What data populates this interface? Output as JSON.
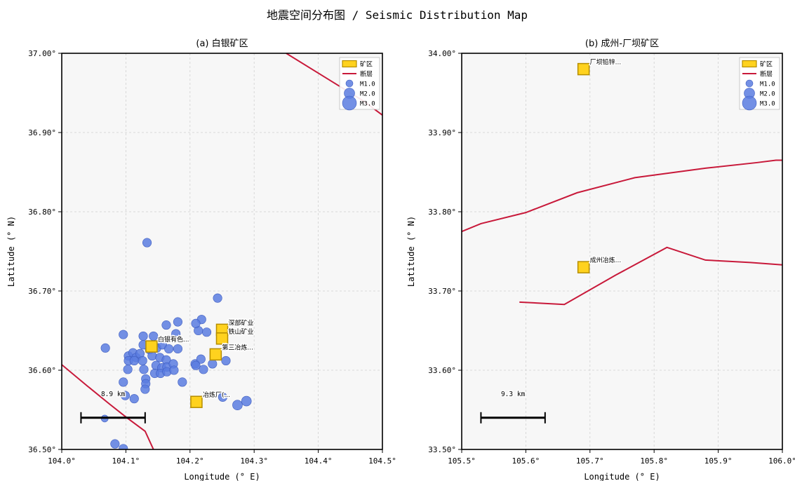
{
  "figure_title": "地震空间分布图 / Seismic Distribution Map",
  "colors": {
    "panel_bg": "#f7f7f7",
    "quake_fill": "#5b7de0",
    "quake_edge": "#3f5dbf",
    "mine_fill": "#ffd21e",
    "mine_edge": "#b58d00",
    "fault": "#c8193a",
    "scale_bar": "#000000",
    "grid": "#d0d0d0"
  },
  "chart_data": [
    {
      "type": "scatter",
      "title": "(a) 白银矿区",
      "xlabel": "Longitude (° E)",
      "ylabel": "Latitude (° N)",
      "xlim": [
        104.0,
        104.5
      ],
      "ylim": [
        36.5,
        37.0
      ],
      "xticks": [
        104.0,
        104.1,
        104.2,
        104.3,
        104.4,
        104.5
      ],
      "xtick_labels": [
        "104.0°",
        "104.1°",
        "104.2°",
        "104.3°",
        "104.4°",
        "104.5°"
      ],
      "yticks": [
        36.5,
        36.6,
        36.7,
        36.8,
        36.9,
        37.0
      ],
      "ytick_labels": [
        "36.50°",
        "36.60°",
        "36.70°",
        "36.80°",
        "36.90°",
        "37.00°"
      ],
      "grid": true,
      "legend_position": "top-right",
      "legend": [
        {
          "label": "矿区",
          "kind": "mine"
        },
        {
          "label": "断层",
          "kind": "fault"
        },
        {
          "label": "M1.0",
          "kind": "quake",
          "mag": 1.0
        },
        {
          "label": "M2.0",
          "kind": "quake",
          "mag": 2.0
        },
        {
          "label": "M3.0",
          "kind": "quake",
          "mag": 3.0
        }
      ],
      "earthquakes": [
        [
          104.133,
          36.761,
          1.5
        ],
        [
          104.243,
          36.691,
          1.5
        ],
        [
          104.218,
          36.664,
          1.5
        ],
        [
          104.226,
          36.648,
          1.5
        ],
        [
          104.213,
          36.65,
          1.5
        ],
        [
          104.209,
          36.659,
          1.5
        ],
        [
          104.163,
          36.657,
          1.5
        ],
        [
          104.181,
          36.661,
          1.5
        ],
        [
          104.178,
          36.646,
          1.5
        ],
        [
          104.096,
          36.645,
          1.5
        ],
        [
          104.127,
          36.643,
          1.5
        ],
        [
          104.143,
          36.643,
          1.5
        ],
        [
          104.068,
          36.628,
          1.5
        ],
        [
          104.104,
          36.618,
          1.5
        ],
        [
          104.111,
          36.622,
          1.5
        ],
        [
          104.116,
          36.616,
          1.5
        ],
        [
          104.122,
          36.621,
          1.5
        ],
        [
          104.127,
          36.632,
          1.5
        ],
        [
          104.137,
          36.626,
          1.5
        ],
        [
          104.148,
          36.628,
          1.5
        ],
        [
          104.157,
          36.632,
          1.5
        ],
        [
          104.167,
          36.627,
          1.5
        ],
        [
          104.181,
          36.627,
          1.5
        ],
        [
          104.141,
          36.618,
          1.5
        ],
        [
          104.153,
          36.616,
          1.5
        ],
        [
          104.163,
          36.613,
          1.5
        ],
        [
          104.104,
          36.612,
          1.5
        ],
        [
          104.113,
          36.612,
          1.5
        ],
        [
          104.126,
          36.612,
          1.5
        ],
        [
          104.147,
          36.606,
          1.5
        ],
        [
          104.156,
          36.603,
          1.5
        ],
        [
          104.164,
          36.604,
          1.5
        ],
        [
          104.174,
          36.608,
          1.5
        ],
        [
          104.208,
          36.608,
          1.5
        ],
        [
          104.217,
          36.614,
          1.5
        ],
        [
          104.235,
          36.608,
          1.5
        ],
        [
          104.256,
          36.612,
          1.5
        ],
        [
          104.103,
          36.601,
          1.5
        ],
        [
          104.128,
          36.601,
          1.5
        ],
        [
          104.145,
          36.596,
          1.5
        ],
        [
          104.154,
          36.596,
          1.5
        ],
        [
          104.164,
          36.598,
          1.5
        ],
        [
          104.175,
          36.6,
          1.5
        ],
        [
          104.209,
          36.606,
          1.5
        ],
        [
          104.221,
          36.601,
          1.5
        ],
        [
          104.131,
          36.589,
          1.5
        ],
        [
          104.131,
          36.583,
          1.5
        ],
        [
          104.096,
          36.585,
          1.5
        ],
        [
          104.13,
          36.576,
          1.5
        ],
        [
          104.188,
          36.585,
          1.5
        ],
        [
          104.099,
          36.568,
          1.5
        ],
        [
          104.113,
          36.564,
          1.5
        ],
        [
          104.251,
          36.566,
          1.5
        ],
        [
          104.274,
          36.556,
          1.8
        ],
        [
          104.288,
          36.561,
          1.8
        ],
        [
          104.067,
          36.539,
          1.0
        ],
        [
          104.083,
          36.507,
          1.5
        ],
        [
          104.096,
          36.501,
          1.5
        ]
      ],
      "mines": [
        {
          "name": "深部矿业",
          "lon": 104.25,
          "lat": 36.651
        },
        {
          "name": "铁山矿业",
          "lon": 104.25,
          "lat": 36.64
        },
        {
          "name": "白银有色...",
          "lon": 104.14,
          "lat": 36.63
        },
        {
          "name": "第三冶炼...",
          "lon": 104.24,
          "lat": 36.62
        },
        {
          "name": "冶炼厂(...",
          "lon": 104.21,
          "lat": 36.56
        }
      ],
      "faults": [
        [
          [
            104.35,
            37.0
          ],
          [
            104.42,
            36.965
          ],
          [
            104.47,
            36.94
          ],
          [
            104.5,
            36.922
          ]
        ],
        [
          [
            104.0,
            36.607
          ],
          [
            104.04,
            36.58
          ],
          [
            104.075,
            36.557
          ],
          [
            104.1,
            36.541
          ],
          [
            104.13,
            36.523
          ],
          [
            104.143,
            36.5
          ]
        ]
      ],
      "scale_bar": {
        "label": "8.9 km",
        "lon_start": 104.03,
        "lon_end": 104.13,
        "lat": 36.54
      }
    },
    {
      "type": "scatter",
      "title": "(b) 成州-厂坝矿区",
      "xlabel": "Longitude (° E)",
      "ylabel": "Latitude (° N)",
      "xlim": [
        105.5,
        106.0
      ],
      "ylim": [
        33.5,
        34.0
      ],
      "xticks": [
        105.5,
        105.6,
        105.7,
        105.8,
        105.9,
        106.0
      ],
      "xtick_labels": [
        "105.5°",
        "105.6°",
        "105.7°",
        "105.8°",
        "105.9°",
        "106.0°"
      ],
      "yticks": [
        33.5,
        33.6,
        33.7,
        33.8,
        33.9,
        34.0
      ],
      "ytick_labels": [
        "33.50°",
        "33.60°",
        "33.70°",
        "33.80°",
        "33.90°",
        "34.00°"
      ],
      "grid": true,
      "legend_position": "top-right",
      "legend": [
        {
          "label": "矿区",
          "kind": "mine"
        },
        {
          "label": "断层",
          "kind": "fault"
        },
        {
          "label": "M1.0",
          "kind": "quake",
          "mag": 1.0
        },
        {
          "label": "M2.0",
          "kind": "quake",
          "mag": 2.0
        },
        {
          "label": "M3.0",
          "kind": "quake",
          "mag": 3.0
        }
      ],
      "earthquakes": [],
      "mines": [
        {
          "name": "厂坝铅锌...",
          "lon": 105.69,
          "lat": 33.98
        },
        {
          "name": "成州冶炼...",
          "lon": 105.69,
          "lat": 33.73
        }
      ],
      "faults": [
        [
          [
            105.5,
            33.775
          ],
          [
            105.53,
            33.785
          ],
          [
            105.6,
            33.799
          ],
          [
            105.68,
            33.824
          ],
          [
            105.77,
            33.843
          ],
          [
            105.88,
            33.855
          ],
          [
            105.96,
            33.862
          ],
          [
            105.99,
            33.865
          ],
          [
            106.0,
            33.865
          ]
        ],
        [
          [
            105.59,
            33.686
          ],
          [
            105.66,
            33.683
          ],
          [
            105.74,
            33.72
          ],
          [
            105.82,
            33.755
          ],
          [
            105.88,
            33.739
          ],
          [
            105.95,
            33.736
          ],
          [
            106.0,
            33.733
          ]
        ]
      ],
      "scale_bar": {
        "label": "9.3 km",
        "lon_start": 105.53,
        "lon_end": 105.63,
        "lat": 33.54
      }
    }
  ]
}
